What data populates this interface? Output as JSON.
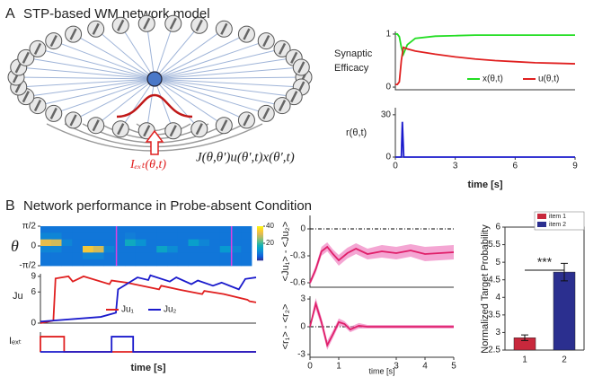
{
  "panels": [
    {
      "letter": "A",
      "title": "STP-based WM network model"
    },
    {
      "letter": "B",
      "title": "Network performance in Probe-absent Condition"
    }
  ],
  "diagram": {
    "connection_label": "J(θ,θ′)u(θ′,t)x(θ′,t)",
    "input_label": "Iₑₓₜ(θ,t)"
  },
  "chart_data": [
    {
      "type": "line",
      "ylabel": [
        "Synaptic",
        "Efficacy"
      ],
      "xlim": [
        0,
        9
      ],
      "ylim": [
        -0.05,
        1.05
      ],
      "yticks": [
        0,
        1
      ],
      "legend": "bottom-right",
      "x": [
        0,
        0.1,
        0.2,
        0.3,
        0.4,
        0.6,
        1,
        2,
        3,
        4,
        5,
        6,
        7,
        8,
        9
      ],
      "series": [
        {
          "name": "x(θ,t)",
          "color": "#22dd22",
          "values": [
            1,
            1,
            0.95,
            0.75,
            0.62,
            0.8,
            0.92,
            0.96,
            0.97,
            0.98,
            0.98,
            0.98,
            0.98,
            0.98,
            0.98
          ]
        },
        {
          "name": "u(θ,t)",
          "color": "#e02020",
          "values": [
            0.05,
            0.05,
            0.1,
            0.5,
            0.75,
            0.72,
            0.68,
            0.62,
            0.57,
            0.53,
            0.5,
            0.48,
            0.46,
            0.45,
            0.44
          ]
        }
      ]
    },
    {
      "type": "line",
      "ylabel": "r(θ,t)",
      "xlabel": "time [s]",
      "xlim": [
        0,
        9
      ],
      "ylim": [
        0,
        35
      ],
      "yticks": [
        0,
        30
      ],
      "xticks": [
        0,
        3,
        6,
        9
      ],
      "x": [
        0,
        0.3,
        0.35,
        0.42,
        0.5,
        9
      ],
      "series": [
        {
          "color": "#1a1acc",
          "values": [
            0,
            0,
            25,
            0,
            0,
            0
          ]
        }
      ]
    },
    {
      "type": "heatmap",
      "ylabel": "θ",
      "xlim": [
        0,
        20
      ],
      "ylim": [
        -1.5708,
        1.5708
      ],
      "clim": [
        0,
        40
      ],
      "cticks": [
        20,
        40
      ],
      "marker_color": "#e040e0",
      "markers": [
        7.2,
        18.1
      ],
      "yticks": [
        {
          "value": -1.5708,
          "label": "-π/2"
        },
        {
          "value": 0,
          "label": "0"
        },
        {
          "value": 1.5708,
          "label": "π/2"
        }
      ],
      "z": [
        [
          8,
          8,
          8,
          8,
          8,
          8,
          8,
          8,
          8,
          8,
          8,
          8,
          8,
          8,
          8,
          8,
          8,
          8,
          8,
          8
        ],
        [
          10,
          10,
          8,
          8,
          8,
          8,
          8,
          8,
          9,
          8,
          8,
          8,
          8,
          8,
          8,
          8,
          8,
          8,
          8,
          8
        ],
        [
          32,
          30,
          10,
          8,
          8,
          8,
          8,
          8,
          16,
          12,
          8,
          8,
          8,
          8,
          14,
          10,
          8,
          8,
          8,
          8
        ],
        [
          10,
          10,
          8,
          8,
          34,
          30,
          10,
          8,
          8,
          8,
          8,
          15,
          11,
          8,
          8,
          8,
          8,
          13,
          10,
          8
        ],
        [
          8,
          8,
          8,
          8,
          10,
          10,
          8,
          8,
          8,
          8,
          8,
          8,
          8,
          8,
          8,
          8,
          8,
          8,
          8,
          8
        ],
        [
          8,
          8,
          8,
          8,
          8,
          8,
          8,
          8,
          8,
          8,
          8,
          8,
          8,
          8,
          8,
          8,
          8,
          8,
          8,
          8
        ]
      ]
    },
    {
      "type": "line",
      "ylabel": "Ju",
      "xlim": [
        0,
        10
      ],
      "ylim": [
        0,
        9.5
      ],
      "yticks": [
        0,
        6,
        9
      ],
      "legend": "bottom",
      "series": [
        {
          "name": "Ju₁",
          "color": "#e02020",
          "x": [
            0,
            0.6,
            0.7,
            1.3,
            1.5,
            2,
            3.2,
            3.3,
            4,
            5.5,
            5.6,
            6.5,
            7.5,
            7.6,
            8.5,
            9.6,
            9.7,
            10
          ],
          "values": [
            0,
            0.5,
            8.6,
            9,
            8,
            9,
            7.5,
            8.2,
            7.8,
            6.5,
            7.2,
            6.4,
            5.6,
            6.2,
            5.6,
            4.5,
            4.2,
            4
          ]
        },
        {
          "name": "Ju₂",
          "color": "#1a1acc",
          "x": [
            0,
            2.8,
            3.5,
            3.6,
            4.5,
            5,
            5.1,
            6,
            6.3,
            7,
            7.3,
            8,
            8.4,
            9.2,
            9.5,
            10
          ],
          "values": [
            0.3,
            1.2,
            2,
            6.5,
            8.8,
            8.3,
            9.2,
            8,
            8.8,
            7.5,
            8.2,
            7.2,
            7.8,
            6.5,
            8.5,
            8.8
          ]
        }
      ]
    },
    {
      "type": "line",
      "ylabel": "Iₑₓₜ",
      "xlabel": "time [s]",
      "xlim": [
        0,
        10
      ],
      "ylim": [
        0,
        1.3
      ],
      "series": [
        {
          "color": "#e02020",
          "x": [
            0,
            0,
            1.1,
            1.1,
            10
          ],
          "values": [
            0,
            1,
            1,
            0,
            0
          ]
        },
        {
          "color": "#1a1acc",
          "x": [
            0,
            3.3,
            3.3,
            4.3,
            4.3,
            10
          ],
          "values": [
            0,
            0,
            1,
            1,
            0,
            0
          ]
        }
      ]
    },
    {
      "type": "line",
      "ylabel": "<Ju₁> - <Ju₂>",
      "xlim": [
        0,
        5
      ],
      "ylim": [
        -0.65,
        0.15
      ],
      "yticks": [
        0,
        -0.3,
        -0.6
      ],
      "hline": 0,
      "x": [
        0,
        0.2,
        0.4,
        0.6,
        0.8,
        1,
        1.3,
        1.6,
        2,
        2.5,
        3,
        3.5,
        4,
        4.5,
        5
      ],
      "series": [
        {
          "color": "#e0206a",
          "band_color": "#f080c0",
          "values": [
            -0.6,
            -0.45,
            -0.25,
            -0.2,
            -0.28,
            -0.35,
            -0.27,
            -0.22,
            -0.28,
            -0.25,
            -0.27,
            -0.24,
            -0.28,
            -0.27,
            -0.26
          ],
          "errors": [
            0.03,
            0.04,
            0.05,
            0.05,
            0.05,
            0.06,
            0.06,
            0.06,
            0.06,
            0.07,
            0.07,
            0.07,
            0.08,
            0.08,
            0.08
          ]
        }
      ]
    },
    {
      "type": "line",
      "ylabel": "<r₁> - <r₂>",
      "xlabel": "time [s]",
      "xlim": [
        0,
        5
      ],
      "ylim": [
        -3.3,
        3.3
      ],
      "yticks": [
        3,
        0,
        -3
      ],
      "xticks": [
        0,
        1,
        3,
        4,
        5
      ],
      "hline": 0,
      "x": [
        0,
        0.2,
        0.4,
        0.6,
        0.8,
        1,
        1.2,
        1.4,
        1.7,
        2,
        2.5,
        3,
        3.5,
        4,
        5
      ],
      "series": [
        {
          "color": "#e0206a",
          "band_color": "#f080c0",
          "values": [
            0,
            2.5,
            0.5,
            -2,
            -0.8,
            0.5,
            0.3,
            -0.3,
            0.1,
            0,
            0,
            0,
            0,
            0,
            0
          ],
          "errors": [
            0.2,
            0.6,
            0.5,
            0.5,
            0.4,
            0.4,
            0.3,
            0.3,
            0.3,
            0.2,
            0.2,
            0.2,
            0.2,
            0.2,
            0.2
          ]
        }
      ]
    },
    {
      "type": "bar",
      "ylabel": "Normalized Target Probability",
      "categories": [
        "1",
        "2"
      ],
      "values": [
        2.85,
        4.72
      ],
      "errors": [
        0.08,
        0.25
      ],
      "colors": [
        "#c8283c",
        "#2b2f8f"
      ],
      "legend": [
        "item 1",
        "item 2"
      ],
      "annotation": "***",
      "ylim": [
        2.5,
        6
      ],
      "yticks": [
        2.5,
        3,
        3.5,
        4,
        4.5,
        5,
        5.5,
        6
      ]
    }
  ]
}
